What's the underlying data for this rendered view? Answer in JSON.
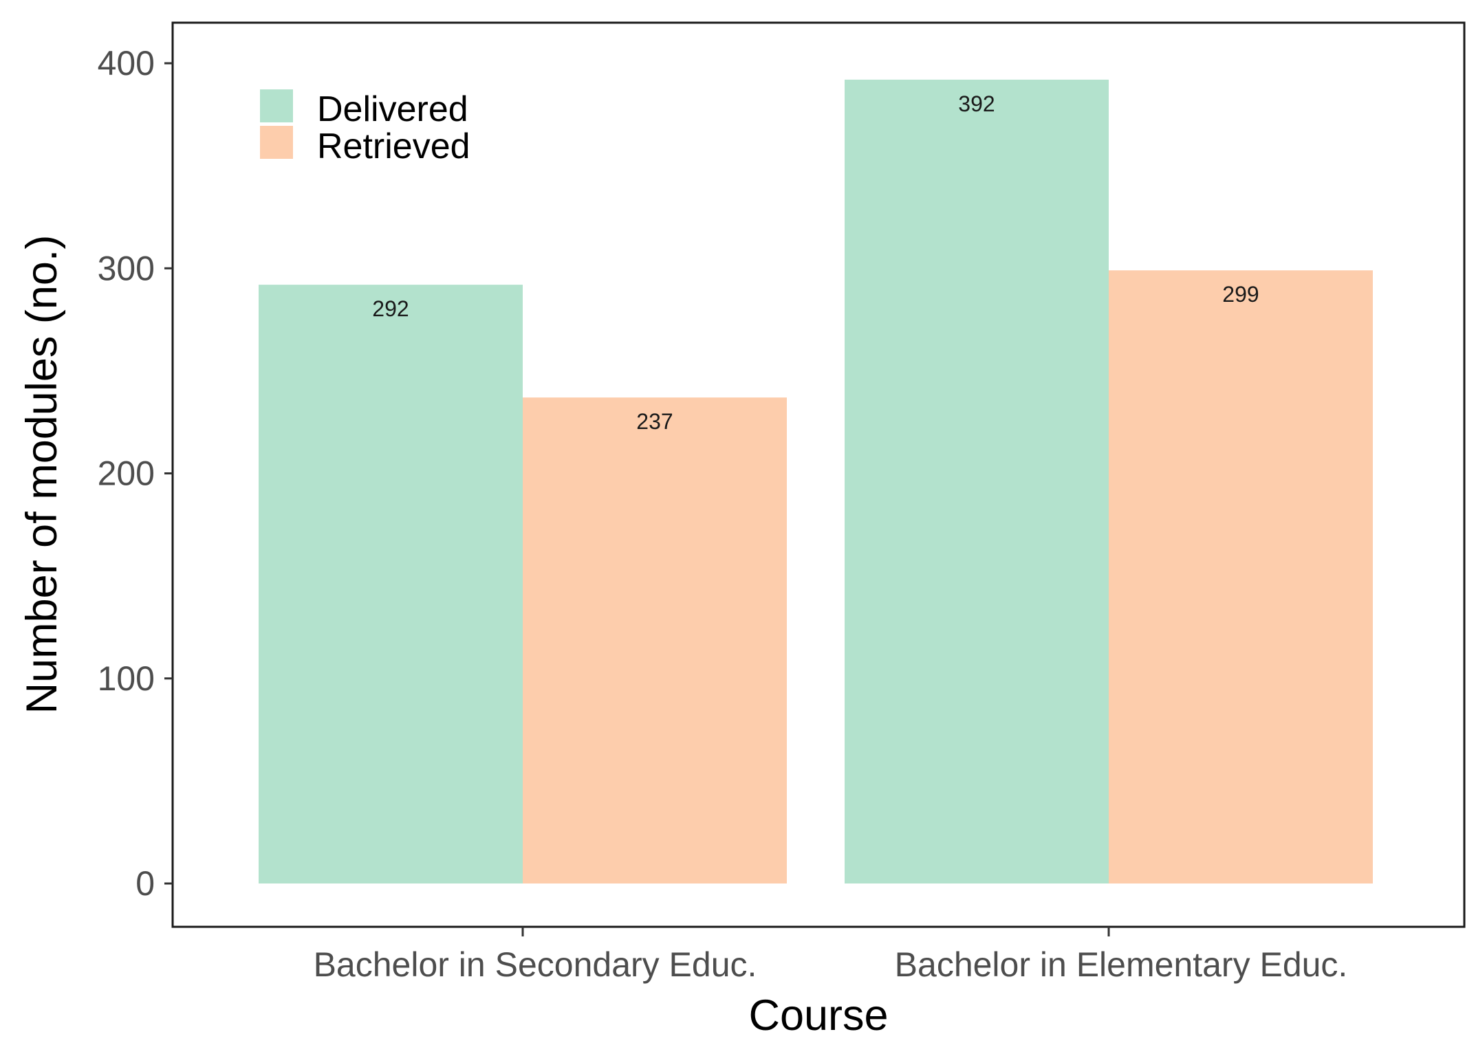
{
  "chart_data": {
    "type": "bar",
    "title": "",
    "xlabel": "Course",
    "ylabel": "Number of modules (no.)",
    "categories": [
      "Bachelor in Secondary Educ.",
      "Bachelor in Elementary Educ."
    ],
    "series": [
      {
        "name": "Delivered",
        "color": "#b3e2cd",
        "values": [
          292,
          392
        ]
      },
      {
        "name": "Retrieved",
        "color": "#fdcdac",
        "values": [
          237,
          299
        ]
      }
    ],
    "ylim": [
      0,
      400
    ],
    "yticks": [
      0,
      100,
      200,
      300,
      400
    ],
    "ytick_labels": [
      "0",
      "100",
      "200",
      "300",
      "400"
    ],
    "data_labels": [
      [
        "292",
        "392"
      ],
      [
        "237",
        "299"
      ]
    ],
    "grid": false,
    "legend_position": "top-left"
  }
}
